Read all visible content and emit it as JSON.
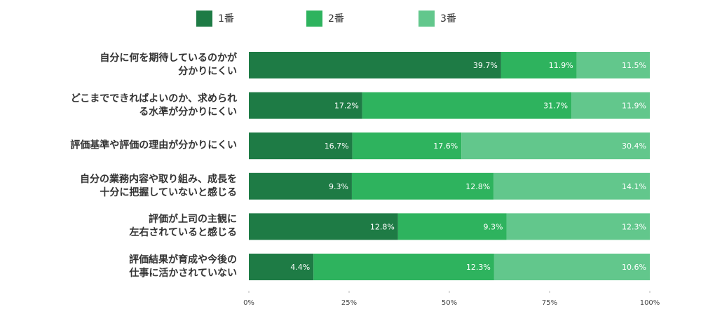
{
  "chart_data": {
    "type": "stacked-bar-horizontal",
    "stack_mode": "percent",
    "categories": [
      "自分に何を期待しているのかが\n分かりにくい",
      "どこまでできればよいのか、求められ\nる水準が分かりにくい",
      "評価基準や評価の理由が分かりにくい",
      "自分の業務内容や取り組み、成長を\n十分に把握していないと感じる",
      "評価が上司の主観に\n左右されていると感じる",
      "評価結果が育成や今後の\n仕事に活かされていない"
    ],
    "series": [
      {
        "name": "1番",
        "color": "#1e7b45",
        "values": [
          39.7,
          17.2,
          16.7,
          9.3,
          12.8,
          4.4
        ],
        "value_labels": [
          "39.7%",
          "17.2%",
          "16.7%",
          "9.3%",
          "12.8%",
          "4.4%"
        ]
      },
      {
        "name": "2番",
        "color": "#2eb35e",
        "values": [
          11.9,
          31.7,
          17.6,
          12.8,
          9.3,
          12.3
        ],
        "value_labels": [
          "11.9%",
          "31.7%",
          "17.6%",
          "12.8%",
          "9.3%",
          "12.3%"
        ]
      },
      {
        "name": "3番",
        "color": "#62c78c",
        "values": [
          11.5,
          11.9,
          30.4,
          14.1,
          12.3,
          10.6
        ],
        "value_labels": [
          "11.5%",
          "11.9%",
          "30.4%",
          "14.1%",
          "12.3%",
          "10.6%"
        ]
      }
    ],
    "xlim": [
      0,
      100
    ],
    "xticks": [
      {
        "value": 0,
        "label": "0%"
      },
      {
        "value": 25,
        "label": "25%"
      },
      {
        "value": 50,
        "label": "50%"
      },
      {
        "value": 75,
        "label": "75%"
      },
      {
        "value": 100,
        "label": "100%"
      }
    ],
    "legend": "top"
  }
}
